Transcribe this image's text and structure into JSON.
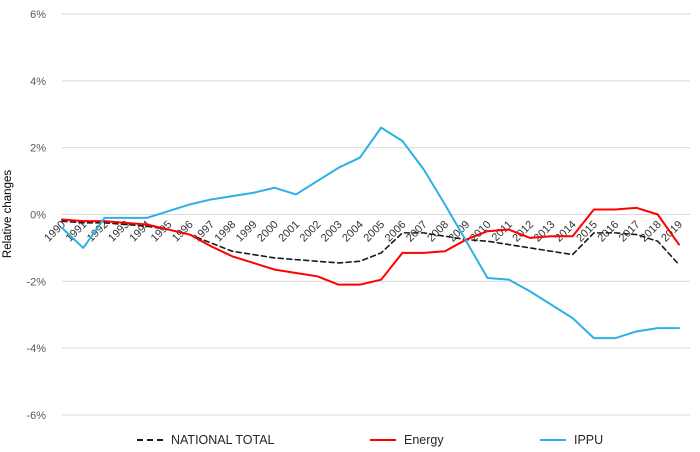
{
  "chart_data": {
    "type": "line",
    "title": "",
    "xlabel": "",
    "ylabel": "Relative changes",
    "ylim": [
      -6,
      6
    ],
    "ytick_values": [
      6,
      4,
      2,
      0,
      -2,
      -4,
      -6
    ],
    "ytick_labels": [
      "6%",
      "4%",
      "2%",
      "0%",
      "-2%",
      "-4%",
      "-6%"
    ],
    "grid": true,
    "legend_position": "bottom",
    "categories": [
      "1990",
      "1991",
      "1992",
      "1993",
      "1994",
      "1995",
      "1996",
      "1997",
      "1998",
      "1999",
      "2000",
      "2001",
      "2002",
      "2003",
      "2004",
      "2005",
      "2006",
      "2007",
      "2008",
      "2009",
      "2010",
      "2011",
      "2012",
      "2013",
      "2014",
      "2015",
      "2016",
      "2017",
      "2018",
      "2019"
    ],
    "series": [
      {
        "name": "NATIONAL TOTAL",
        "style": "dashed",
        "color": "#1a1a1a",
        "values": [
          -0.2,
          -0.25,
          -0.25,
          -0.3,
          -0.35,
          -0.45,
          -0.6,
          -0.85,
          -1.1,
          -1.2,
          -1.3,
          -1.35,
          -1.4,
          -1.45,
          -1.4,
          -1.15,
          -0.55,
          -0.55,
          -0.65,
          -0.75,
          -0.8,
          -0.9,
          -1.0,
          -1.1,
          -1.2,
          -0.55,
          -0.55,
          -0.6,
          -0.8,
          -1.5
        ]
      },
      {
        "name": "Energy",
        "style": "solid",
        "color": "#fe0000",
        "values": [
          -0.15,
          -0.2,
          -0.2,
          -0.25,
          -0.3,
          -0.45,
          -0.6,
          -0.95,
          -1.25,
          -1.45,
          -1.65,
          -1.75,
          -1.85,
          -2.1,
          -2.1,
          -1.95,
          -1.15,
          -1.15,
          -1.1,
          -0.75,
          -0.5,
          -0.45,
          -0.7,
          -0.65,
          -0.65,
          0.15,
          0.15,
          0.2,
          0.0,
          -0.9
        ]
      },
      {
        "name": "IPPU",
        "style": "solid",
        "color": "#2eb0e6",
        "values": [
          -0.4,
          -1.0,
          -0.1,
          -0.1,
          -0.1,
          0.1,
          0.3,
          0.45,
          0.55,
          0.65,
          0.8,
          0.6,
          1.0,
          1.4,
          1.7,
          2.6,
          2.2,
          1.35,
          0.3,
          -0.8,
          -1.9,
          -1.95,
          -2.3,
          -2.7,
          -3.1,
          -3.7,
          -3.7,
          -3.5,
          -3.4,
          -3.4
        ]
      }
    ],
    "colors": {
      "gridline": "#d9d9d9",
      "y_tick_text": "#595959",
      "x_tick_text": "#333333",
      "axis_title_text": "#595959",
      "legend_text": "#262626"
    }
  }
}
